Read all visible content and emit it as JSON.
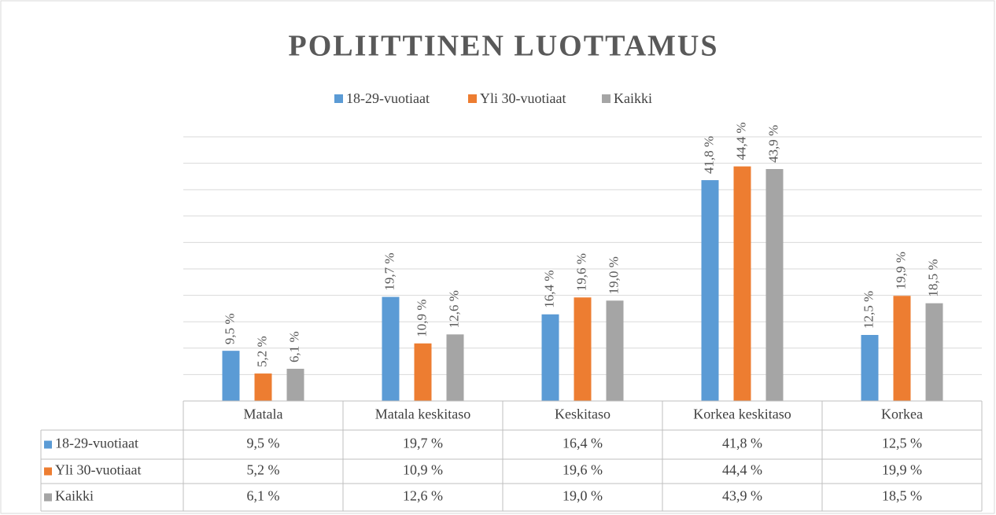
{
  "chart_data": {
    "type": "bar",
    "title": "POLIITTINEN LUOTTAMUS",
    "categories": [
      "Matala",
      "Matala keskitaso",
      "Keskitaso",
      "Korkea keskitaso",
      "Korkea"
    ],
    "series": [
      {
        "name": "18-29-vuotiaat",
        "color": "#5b9bd5",
        "values": [
          9.5,
          19.7,
          16.4,
          41.8,
          12.5
        ],
        "value_labels": [
          "9,5 %",
          "19,7 %",
          "16,4 %",
          "41,8 %",
          "12,5 %"
        ]
      },
      {
        "name": "Yli 30-vuotiaat",
        "color": "#ed7d31",
        "values": [
          5.2,
          10.9,
          19.6,
          44.4,
          19.9
        ],
        "value_labels": [
          "5,2 %",
          "10,9 %",
          "19,6 %",
          "44,4 %",
          "19,9 %"
        ]
      },
      {
        "name": "Kaikki",
        "color": "#a5a5a5",
        "values": [
          6.1,
          12.6,
          19.0,
          43.9,
          18.5
        ],
        "value_labels": [
          "6,1 %",
          "12,6 %",
          "19,0 %",
          "43,9 %",
          "18,5 %"
        ]
      }
    ],
    "ylim": [
      0,
      50
    ],
    "yticks": [
      0,
      5,
      10,
      15,
      20,
      25,
      30,
      35,
      40,
      45,
      50
    ],
    "grid": true,
    "legend": "top",
    "data_table": true
  }
}
